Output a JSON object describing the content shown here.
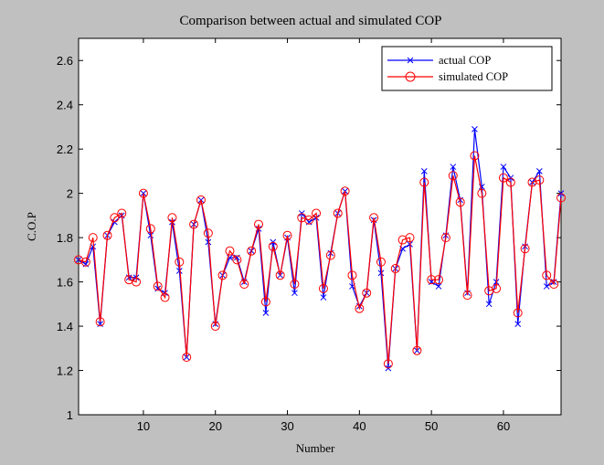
{
  "chart_data": {
    "type": "line",
    "title": "Comparison between actual and simulated COP",
    "xlabel": "Number",
    "ylabel": "C.O.P",
    "xlim": [
      1,
      68
    ],
    "ylim": [
      1,
      2.7
    ],
    "xticks": [
      10,
      20,
      30,
      40,
      50,
      60
    ],
    "yticks": [
      1,
      1.2,
      1.4,
      1.6,
      1.8,
      2,
      2.2,
      2.4,
      2.6
    ],
    "ytick_labels": [
      "1",
      "1.2",
      "1.4",
      "1.6",
      "1.8",
      "2",
      "2.2",
      "2.4",
      "2.6"
    ],
    "legend_position": "top-right",
    "grid": false,
    "series": [
      {
        "name": "actual COP",
        "color": "#0000ff",
        "marker": "x",
        "values": [
          1.7,
          1.68,
          1.76,
          1.41,
          1.81,
          1.87,
          1.9,
          1.62,
          1.62,
          2.0,
          1.81,
          1.57,
          1.55,
          1.87,
          1.65,
          1.26,
          1.86,
          1.97,
          1.78,
          1.41,
          1.63,
          1.71,
          1.71,
          1.6,
          1.74,
          1.84,
          1.46,
          1.78,
          1.63,
          1.8,
          1.55,
          1.91,
          1.87,
          1.89,
          1.53,
          1.73,
          1.91,
          2.01,
          1.58,
          1.49,
          1.55,
          1.88,
          1.64,
          1.21,
          1.66,
          1.75,
          1.77,
          1.29,
          2.1,
          1.6,
          1.58,
          1.81,
          2.12,
          1.97,
          1.55,
          2.29,
          2.03,
          1.5,
          1.6,
          2.12,
          2.07,
          1.41,
          1.76,
          2.05,
          2.1,
          1.58,
          1.6,
          2.0
        ]
      },
      {
        "name": "simulated COP",
        "color": "#ff0000",
        "marker": "o",
        "values": [
          1.7,
          1.69,
          1.8,
          1.42,
          1.81,
          1.89,
          1.91,
          1.61,
          1.6,
          2.0,
          1.84,
          1.58,
          1.53,
          1.89,
          1.69,
          1.26,
          1.86,
          1.97,
          1.82,
          1.4,
          1.63,
          1.74,
          1.7,
          1.59,
          1.74,
          1.86,
          1.51,
          1.76,
          1.63,
          1.81,
          1.59,
          1.89,
          1.88,
          1.91,
          1.57,
          1.72,
          1.91,
          2.01,
          1.63,
          1.48,
          1.55,
          1.89,
          1.69,
          1.23,
          1.66,
          1.79,
          1.8,
          1.29,
          2.05,
          1.61,
          1.61,
          1.8,
          2.08,
          1.96,
          1.54,
          2.17,
          2.0,
          1.56,
          1.57,
          2.07,
          2.05,
          1.46,
          1.75,
          2.05,
          2.06,
          1.63,
          1.59,
          1.98
        ]
      }
    ]
  }
}
